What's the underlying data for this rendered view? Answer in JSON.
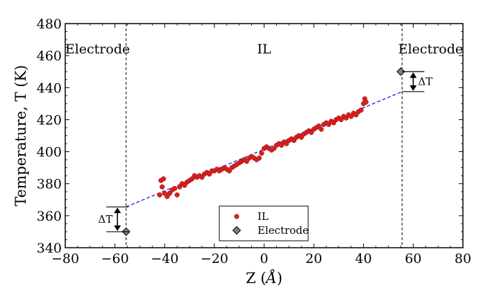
{
  "chart_data": {
    "type": "scatter",
    "xlabel_prefix": "Z (",
    "xlabel_unit": "Å",
    "xlabel_suffix": ")",
    "ylabel": "Temperature, T (K)",
    "xlim": [
      -80,
      80
    ],
    "ylim": [
      340,
      480
    ],
    "xticks": [
      -80,
      -60,
      -40,
      -20,
      0,
      20,
      40,
      60,
      80
    ],
    "yticks": [
      340,
      360,
      380,
      400,
      420,
      440,
      460,
      480
    ],
    "xtick_labels": [
      "−80",
      "−60",
      "−40",
      "−20",
      "0",
      "20",
      "40",
      "60",
      "80"
    ],
    "ytick_labels": [
      "340",
      "360",
      "380",
      "400",
      "420",
      "440",
      "460",
      "480"
    ],
    "regions": [
      {
        "label": "Electrode",
        "x": -67
      },
      {
        "label": "IL",
        "x": 0
      },
      {
        "label": "Electrode",
        "x": 67
      }
    ],
    "boundaries": [
      -55.5,
      55.5
    ],
    "series": [
      {
        "name": "IL",
        "marker": "circle",
        "color": "#d62020",
        "x_range": [
          -42,
          41
        ],
        "slope": 0.652,
        "intercept": 401.5,
        "points": [
          [
            -42,
            373
          ],
          [
            -41.5,
            382
          ],
          [
            -41,
            378
          ],
          [
            -40.5,
            383
          ],
          [
            -40,
            374
          ],
          [
            -39,
            372
          ],
          [
            -38,
            374
          ],
          [
            -37,
            376
          ],
          [
            -36,
            377
          ],
          [
            -35,
            373
          ],
          [
            -34,
            378
          ],
          [
            -33,
            380
          ],
          [
            -32,
            379
          ],
          [
            -31,
            381
          ],
          [
            -30,
            382
          ],
          [
            -29,
            383
          ],
          [
            -28,
            385
          ],
          [
            -27,
            384
          ],
          [
            -26,
            385
          ],
          [
            -25,
            384
          ],
          [
            -24,
            386
          ],
          [
            -23,
            387
          ],
          [
            -22,
            386
          ],
          [
            -21,
            388
          ],
          [
            -20,
            388
          ],
          [
            -19,
            389
          ],
          [
            -18,
            388
          ],
          [
            -17,
            389
          ],
          [
            -16,
            390
          ],
          [
            -15,
            389
          ],
          [
            -14,
            388
          ],
          [
            -13,
            390
          ],
          [
            -12,
            391
          ],
          [
            -11,
            392
          ],
          [
            -10,
            393
          ],
          [
            -9,
            394
          ],
          [
            -8,
            395
          ],
          [
            -7,
            394
          ],
          [
            -6,
            396
          ],
          [
            -5,
            397
          ],
          [
            -4,
            396
          ],
          [
            -3,
            395
          ],
          [
            -2,
            396
          ],
          [
            -1,
            399
          ],
          [
            0,
            402
          ],
          [
            1,
            403
          ],
          [
            2,
            402
          ],
          [
            3,
            401
          ],
          [
            4,
            402
          ],
          [
            5,
            404
          ],
          [
            6,
            405
          ],
          [
            7,
            404
          ],
          [
            8,
            406
          ],
          [
            9,
            405
          ],
          [
            10,
            407
          ],
          [
            11,
            408
          ],
          [
            12,
            407
          ],
          [
            13,
            409
          ],
          [
            14,
            410
          ],
          [
            15,
            409
          ],
          [
            16,
            411
          ],
          [
            17,
            412
          ],
          [
            18,
            413
          ],
          [
            19,
            412
          ],
          [
            20,
            414
          ],
          [
            21,
            415
          ],
          [
            22,
            416
          ],
          [
            23,
            414
          ],
          [
            24,
            417
          ],
          [
            25,
            418
          ],
          [
            26,
            417
          ],
          [
            27,
            419
          ],
          [
            28,
            418
          ],
          [
            29,
            420
          ],
          [
            30,
            421
          ],
          [
            31,
            420
          ],
          [
            32,
            422
          ],
          [
            33,
            421
          ],
          [
            34,
            423
          ],
          [
            35,
            422
          ],
          [
            36,
            424
          ],
          [
            37,
            423
          ],
          [
            38,
            425
          ],
          [
            39,
            426
          ],
          [
            40,
            430
          ],
          [
            40.5,
            433
          ],
          [
            41,
            431
          ]
        ]
      },
      {
        "name": "Electrode",
        "marker": "diamond",
        "color": "#808080",
        "points": [
          [
            -55.5,
            350
          ],
          [
            55,
            450
          ]
        ]
      }
    ],
    "fit_line": {
      "color": "#1f1fd6",
      "style": "dashed",
      "x_range": [
        -55.5,
        55.5
      ],
      "y_range": [
        365.5,
        437.5
      ]
    },
    "delta_T": [
      {
        "label": "ΔT",
        "x": -59,
        "y_top": 365.5,
        "y_bottom": 350,
        "side": "left"
      },
      {
        "label": "ΔT",
        "x": 60,
        "y_top": 450,
        "y_bottom": 437.5,
        "side": "right"
      }
    ],
    "legend": {
      "position": "bottom-center",
      "entries": [
        {
          "label": "IL",
          "marker": "circle",
          "color": "#d62020"
        },
        {
          "label": "Electrode",
          "marker": "diamond",
          "color": "#808080"
        }
      ]
    }
  }
}
